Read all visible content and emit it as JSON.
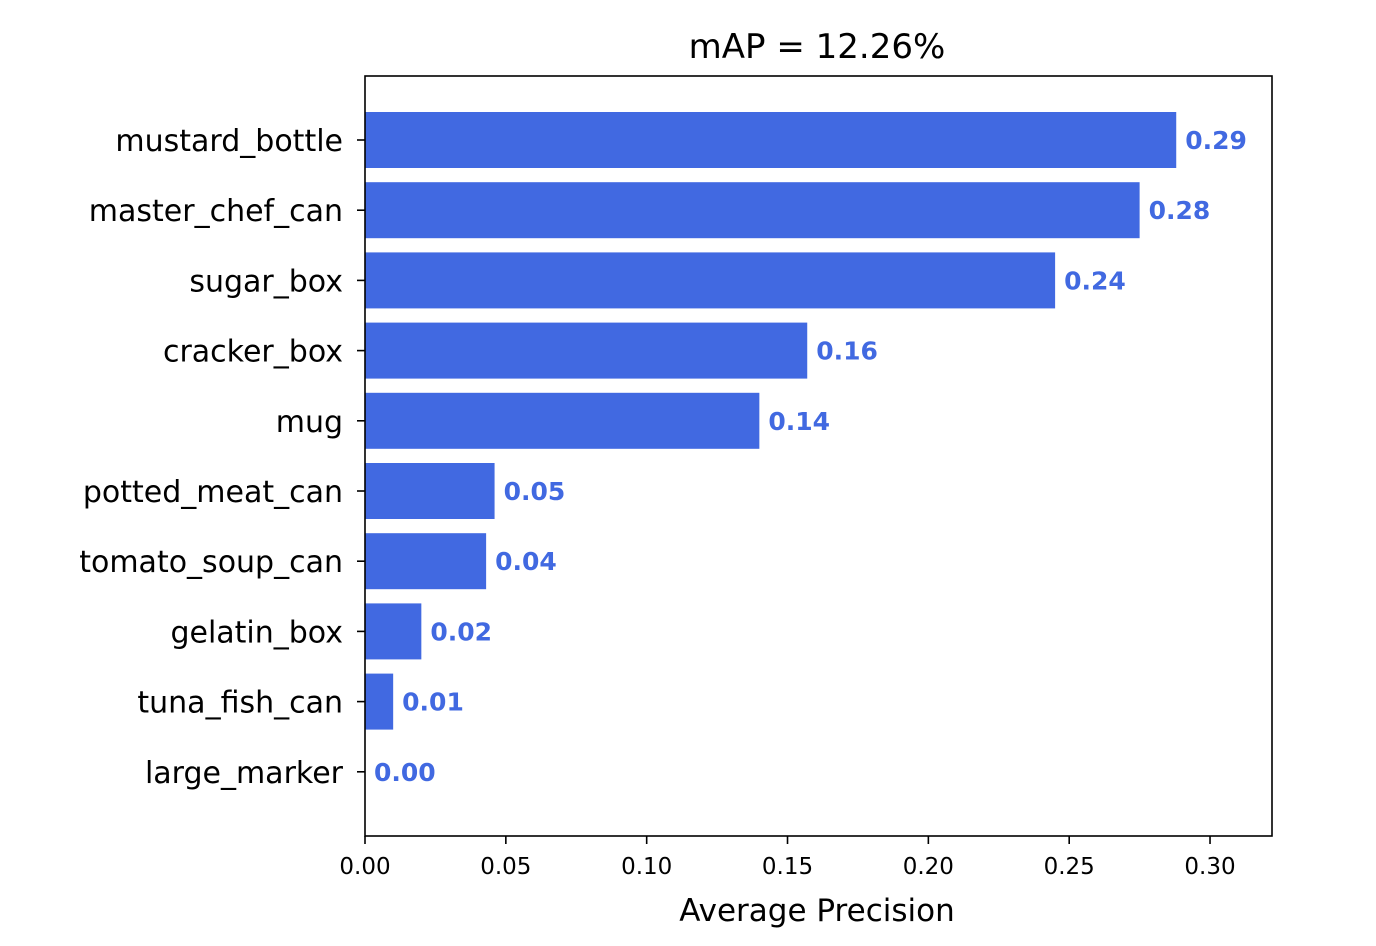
{
  "chart_data": {
    "type": "bar",
    "orientation": "horizontal",
    "title": "mAP = 12.26%",
    "xlabel": "Average Precision",
    "ylabel": "",
    "xlim": [
      0,
      0.322
    ],
    "xticks": [
      "0.00",
      "0.05",
      "0.10",
      "0.15",
      "0.20",
      "0.25",
      "0.30"
    ],
    "grid": false,
    "legend": "none",
    "bar_color": "#4169e1",
    "label_color": "#4169e1",
    "categories": [
      "mustard_bottle",
      "master_chef_can",
      "sugar_box",
      "cracker_box",
      "mug",
      "potted_meat_can",
      "tomato_soup_can",
      "gelatin_box",
      "tuna_fish_can",
      "large_marker"
    ],
    "values": [
      0.288,
      0.275,
      0.245,
      0.157,
      0.14,
      0.046,
      0.043,
      0.02,
      0.01,
      0.0
    ],
    "data_labels": [
      "0.29",
      "0.28",
      "0.24",
      "0.16",
      "0.14",
      "0.05",
      "0.04",
      "0.02",
      "0.01",
      "0.00"
    ]
  }
}
